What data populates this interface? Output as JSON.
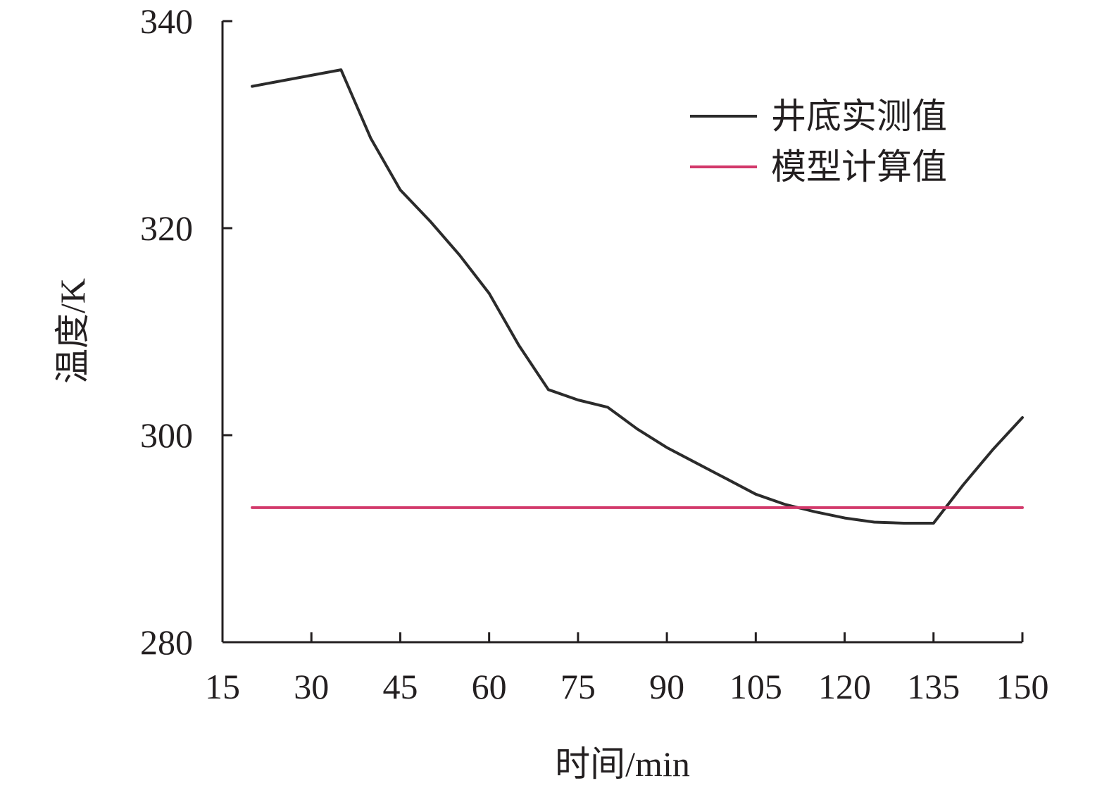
{
  "chart_data": {
    "type": "line",
    "title": "",
    "xlabel": "时间/min",
    "ylabel": "温度/K",
    "xlim": [
      15,
      150
    ],
    "ylim": [
      280,
      340
    ],
    "x_ticks": [
      15,
      30,
      45,
      60,
      75,
      90,
      105,
      120,
      135,
      150
    ],
    "y_ticks": [
      280,
      300,
      320,
      340
    ],
    "grid": false,
    "legend_position": "top-right",
    "series": [
      {
        "name": "井底实测值",
        "color": "#2b2b2b",
        "x": [
          20,
          35,
          40,
          45,
          50,
          55,
          60,
          65,
          70,
          75,
          80,
          85,
          90,
          95,
          100,
          105,
          110,
          115,
          120,
          125,
          130,
          135,
          140,
          145,
          150
        ],
        "y": [
          333.7,
          335.3,
          328.7,
          323.7,
          320.7,
          317.4,
          313.7,
          308.7,
          304.4,
          303.4,
          302.7,
          300.6,
          298.8,
          297.3,
          295.8,
          294.3,
          293.3,
          292.6,
          292.0,
          291.6,
          291.5,
          291.5,
          295.2,
          298.6,
          301.7
        ]
      },
      {
        "name": "模型计算值",
        "color": "#d2386a",
        "x": [
          20,
          150
        ],
        "y": [
          293.0,
          293.0
        ]
      }
    ]
  }
}
